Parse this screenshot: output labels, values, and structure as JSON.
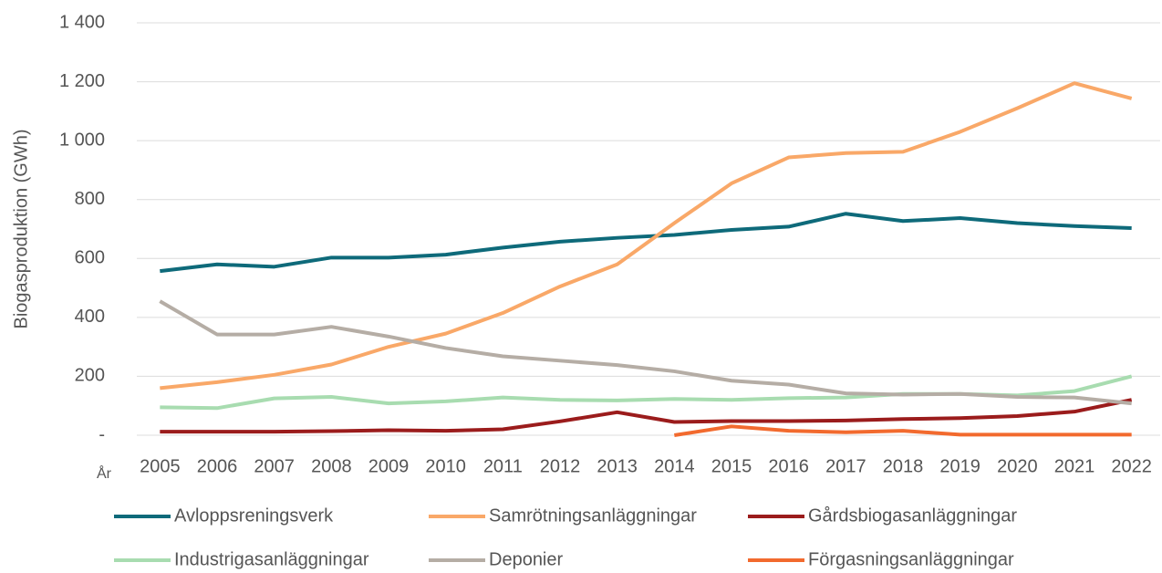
{
  "chart_data": {
    "type": "line",
    "y_label": "Biogasproduktion (GWh)",
    "x_label": "År",
    "categories": [
      "2005",
      "2006",
      "2007",
      "2008",
      "2009",
      "2010",
      "2011",
      "2012",
      "2013",
      "2014",
      "2015",
      "2016",
      "2017",
      "2018",
      "2019",
      "2020",
      "2021",
      "2022"
    ],
    "series": [
      {
        "name": "Avloppsreningsverk",
        "color": "#0e6a7a",
        "values": [
          557,
          580,
          572,
          603,
          603,
          613,
          637,
          657,
          670,
          680,
          697,
          708,
          752,
          727,
          737,
          720,
          710,
          703
        ]
      },
      {
        "name": "Samrötningsanläggningar",
        "color": "#f9a868",
        "values": [
          160,
          180,
          205,
          240,
          300,
          345,
          415,
          505,
          580,
          720,
          855,
          943,
          958,
          962,
          1030,
          1110,
          1195,
          1143
        ]
      },
      {
        "name": "Gårdsbiogasanläggningar",
        "color": "#9b1c1c",
        "values": [
          12,
          12,
          12,
          14,
          17,
          15,
          20,
          47,
          78,
          45,
          48,
          48,
          50,
          55,
          58,
          65,
          80,
          120
        ]
      },
      {
        "name": "Industrigasanläggningar",
        "color": "#a8dcb0",
        "values": [
          95,
          92,
          125,
          130,
          108,
          115,
          128,
          120,
          118,
          123,
          120,
          126,
          128,
          140,
          140,
          135,
          150,
          200
        ]
      },
      {
        "name": "Deponier",
        "color": "#b5ada5",
        "values": [
          455,
          342,
          342,
          368,
          335,
          296,
          268,
          253,
          238,
          217,
          185,
          172,
          142,
          138,
          140,
          130,
          128,
          108
        ]
      },
      {
        "name": "Förgasningsanläggningar",
        "color": "#f26a2e",
        "values": [
          null,
          null,
          null,
          null,
          null,
          null,
          null,
          null,
          null,
          0,
          30,
          15,
          10,
          15,
          2,
          2,
          2,
          2
        ]
      }
    ],
    "ylim": [
      0,
      1400
    ],
    "yticks": [
      {
        "value": 0,
        "label": "-"
      },
      200,
      400,
      600,
      800,
      {
        "value": 1000,
        "label": "1 000"
      },
      {
        "value": 1200,
        "label": "1 200"
      },
      {
        "value": 1400,
        "label": "1 400"
      }
    ],
    "grid": true
  }
}
